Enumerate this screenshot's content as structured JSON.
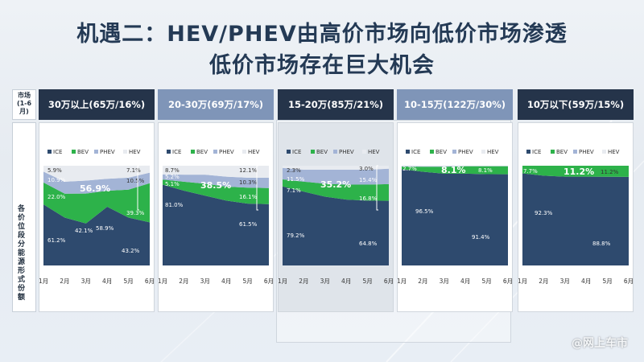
{
  "title_line1": "机遇二：HEV/PHEV由高价市场向低价市场渗透",
  "title_line2": "低价市场存在巨大机会",
  "row_header_market": "市场\n(1-6\n月)",
  "row_header_share": "各价位段分能源形式份额",
  "watermark": "@网上车市",
  "colors": {
    "ICE": "#2e4a6e",
    "BEV": "#2db24a",
    "PHEV": "#a3b4d6",
    "HEV": "#e8ebf0",
    "head_dark": "#25344a",
    "head_light": "#7f95b8"
  },
  "chart_data": [
    {
      "type": "area",
      "title": "30万以上(65万/16%)",
      "categories": [
        "1月",
        "2月",
        "3月",
        "4月",
        "5月",
        "6月"
      ],
      "legend": [
        "ICE",
        "BEV",
        "PHEV",
        "HEV"
      ],
      "series": [
        {
          "name": "ICE",
          "values": [
            61.2,
            48,
            42.1,
            58.9,
            48,
            43.2
          ]
        },
        {
          "name": "BEV",
          "values": [
            22.0,
            24,
            30,
            16,
            28,
            39.3
          ]
        },
        {
          "name": "PHEV",
          "values": [
            10.9,
            12,
            13,
            12,
            12,
            10.5
          ]
        },
        {
          "name": "HEV",
          "values": [
            5.9,
            16,
            14.9,
            13.1,
            12,
            7.1
          ]
        }
      ],
      "labels": [
        "5.9%",
        "10.9%",
        "22.0%",
        "61.2%",
        "42.1%",
        "58.9%",
        "43.2%",
        "7.1%",
        "10.5%",
        "39.3%"
      ],
      "callout": "56.9%",
      "header_style": "dark"
    },
    {
      "type": "area",
      "title": "20-30万(69万/17%)",
      "categories": [
        "1月",
        "2月",
        "3月",
        "4月",
        "5月",
        "6月"
      ],
      "legend": [
        "ICE",
        "BEV",
        "PHEV",
        "HEV"
      ],
      "series": [
        {
          "name": "ICE",
          "values": [
            81.0,
            75,
            70,
            65,
            62,
            61.5
          ]
        },
        {
          "name": "BEV",
          "values": [
            5.1,
            9,
            12,
            14,
            16,
            16.1
          ]
        },
        {
          "name": "PHEV",
          "values": [
            5.2,
            7,
            9,
            10,
            10,
            10.3
          ]
        },
        {
          "name": "HEV",
          "values": [
            8.7,
            9,
            9,
            11,
            12,
            12.1
          ]
        }
      ],
      "labels": [
        "8.7%",
        "5.2%",
        "5.1%",
        "81.0%",
        "12.1%",
        "10.3%",
        "16.1%",
        "61.5%"
      ],
      "callout": "38.5%",
      "header_style": "light"
    },
    {
      "type": "area",
      "title": "15-20万(85万/21%)",
      "categories": [
        "1月",
        "2月",
        "3月",
        "4月",
        "5月",
        "6月"
      ],
      "legend": [
        "ICE",
        "BEV",
        "PHEV",
        "HEV"
      ],
      "series": [
        {
          "name": "ICE",
          "values": [
            79.2,
            74,
            69,
            66,
            65,
            64.8
          ]
        },
        {
          "name": "BEV",
          "values": [
            7.1,
            10,
            13,
            15,
            16,
            16.8
          ]
        },
        {
          "name": "PHEV",
          "values": [
            11.5,
            12,
            14,
            15,
            15,
            15.4
          ]
        },
        {
          "name": "HEV",
          "values": [
            2.3,
            4,
            4,
            4,
            4,
            3.0
          ]
        }
      ],
      "labels": [
        "2.3%",
        "11.5%",
        "7.1%",
        "79.2%",
        "3.0%",
        "15.4%",
        "16.8%",
        "64.8%"
      ],
      "callout": "35.2%",
      "header_style": "dark"
    },
    {
      "type": "area",
      "title": "10-15万(122万/30%)",
      "categories": [
        "1月",
        "2月",
        "3月",
        "4月",
        "5月",
        "6月"
      ],
      "legend": [
        "ICE",
        "BEV",
        "PHEV",
        "HEV"
      ],
      "series": [
        {
          "name": "ICE",
          "values": [
            96.5,
            94,
            92,
            92,
            91.5,
            91.4
          ]
        },
        {
          "name": "BEV",
          "values": [
            2.7,
            5,
            7,
            7.5,
            8,
            8.1
          ]
        },
        {
          "name": "PHEV",
          "values": [
            0.5,
            0.5,
            0.5,
            0.3,
            0.3,
            0.3
          ]
        },
        {
          "name": "HEV",
          "values": [
            0.3,
            0.5,
            0.5,
            0.2,
            0.2,
            0.2
          ]
        }
      ],
      "labels": [
        "2.7%",
        "96.5%",
        "91.4%",
        "8.1%"
      ],
      "callout": "8.1%",
      "header_style": "light"
    },
    {
      "type": "area",
      "title": "10万以下(59万/15%)",
      "categories": [
        "1月",
        "2月",
        "3月",
        "4月",
        "5月",
        "6月"
      ],
      "legend": [
        "ICE",
        "BEV",
        "PHEV",
        "HEV"
      ],
      "series": [
        {
          "name": "ICE",
          "values": [
            92.3,
            90,
            89,
            89,
            88.9,
            88.8
          ]
        },
        {
          "name": "BEV",
          "values": [
            7.7,
            10,
            11,
            11,
            11.1,
            11.2
          ]
        },
        {
          "name": "PHEV",
          "values": [
            0,
            0,
            0,
            0,
            0,
            0
          ]
        },
        {
          "name": "HEV",
          "values": [
            0,
            0,
            0,
            0,
            0,
            0
          ]
        }
      ],
      "labels": [
        "7.7%",
        "92.3%",
        "88.8%",
        "11.2%"
      ],
      "callout": "11.2%",
      "header_style": "dark"
    }
  ]
}
